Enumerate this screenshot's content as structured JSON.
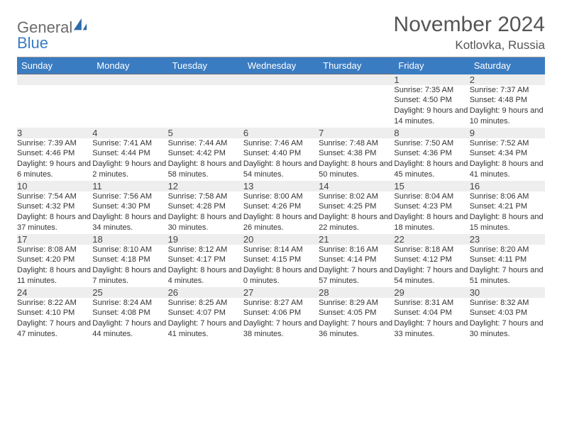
{
  "logo": {
    "word1": "General",
    "word2": "Blue"
  },
  "title": "November 2024",
  "location": "Kotlovka, Russia",
  "colors": {
    "header_bg": "#3a7cc2",
    "header_text": "#ffffff",
    "daynum_bg": "#eeeeee",
    "text": "#333333",
    "title_text": "#555555",
    "rule": "#6d6d6d"
  },
  "weekdays": [
    "Sunday",
    "Monday",
    "Tuesday",
    "Wednesday",
    "Thursday",
    "Friday",
    "Saturday"
  ],
  "weeks": [
    [
      null,
      null,
      null,
      null,
      null,
      {
        "n": "1",
        "sunrise": "7:35 AM",
        "sunset": "4:50 PM",
        "dl": "9 hours and 14 minutes."
      },
      {
        "n": "2",
        "sunrise": "7:37 AM",
        "sunset": "4:48 PM",
        "dl": "9 hours and 10 minutes."
      }
    ],
    [
      {
        "n": "3",
        "sunrise": "7:39 AM",
        "sunset": "4:46 PM",
        "dl": "9 hours and 6 minutes."
      },
      {
        "n": "4",
        "sunrise": "7:41 AM",
        "sunset": "4:44 PM",
        "dl": "9 hours and 2 minutes."
      },
      {
        "n": "5",
        "sunrise": "7:44 AM",
        "sunset": "4:42 PM",
        "dl": "8 hours and 58 minutes."
      },
      {
        "n": "6",
        "sunrise": "7:46 AM",
        "sunset": "4:40 PM",
        "dl": "8 hours and 54 minutes."
      },
      {
        "n": "7",
        "sunrise": "7:48 AM",
        "sunset": "4:38 PM",
        "dl": "8 hours and 50 minutes."
      },
      {
        "n": "8",
        "sunrise": "7:50 AM",
        "sunset": "4:36 PM",
        "dl": "8 hours and 45 minutes."
      },
      {
        "n": "9",
        "sunrise": "7:52 AM",
        "sunset": "4:34 PM",
        "dl": "8 hours and 41 minutes."
      }
    ],
    [
      {
        "n": "10",
        "sunrise": "7:54 AM",
        "sunset": "4:32 PM",
        "dl": "8 hours and 37 minutes."
      },
      {
        "n": "11",
        "sunrise": "7:56 AM",
        "sunset": "4:30 PM",
        "dl": "8 hours and 34 minutes."
      },
      {
        "n": "12",
        "sunrise": "7:58 AM",
        "sunset": "4:28 PM",
        "dl": "8 hours and 30 minutes."
      },
      {
        "n": "13",
        "sunrise": "8:00 AM",
        "sunset": "4:26 PM",
        "dl": "8 hours and 26 minutes."
      },
      {
        "n": "14",
        "sunrise": "8:02 AM",
        "sunset": "4:25 PM",
        "dl": "8 hours and 22 minutes."
      },
      {
        "n": "15",
        "sunrise": "8:04 AM",
        "sunset": "4:23 PM",
        "dl": "8 hours and 18 minutes."
      },
      {
        "n": "16",
        "sunrise": "8:06 AM",
        "sunset": "4:21 PM",
        "dl": "8 hours and 15 minutes."
      }
    ],
    [
      {
        "n": "17",
        "sunrise": "8:08 AM",
        "sunset": "4:20 PM",
        "dl": "8 hours and 11 minutes."
      },
      {
        "n": "18",
        "sunrise": "8:10 AM",
        "sunset": "4:18 PM",
        "dl": "8 hours and 7 minutes."
      },
      {
        "n": "19",
        "sunrise": "8:12 AM",
        "sunset": "4:17 PM",
        "dl": "8 hours and 4 minutes."
      },
      {
        "n": "20",
        "sunrise": "8:14 AM",
        "sunset": "4:15 PM",
        "dl": "8 hours and 0 minutes."
      },
      {
        "n": "21",
        "sunrise": "8:16 AM",
        "sunset": "4:14 PM",
        "dl": "7 hours and 57 minutes."
      },
      {
        "n": "22",
        "sunrise": "8:18 AM",
        "sunset": "4:12 PM",
        "dl": "7 hours and 54 minutes."
      },
      {
        "n": "23",
        "sunrise": "8:20 AM",
        "sunset": "4:11 PM",
        "dl": "7 hours and 51 minutes."
      }
    ],
    [
      {
        "n": "24",
        "sunrise": "8:22 AM",
        "sunset": "4:10 PM",
        "dl": "7 hours and 47 minutes."
      },
      {
        "n": "25",
        "sunrise": "8:24 AM",
        "sunset": "4:08 PM",
        "dl": "7 hours and 44 minutes."
      },
      {
        "n": "26",
        "sunrise": "8:25 AM",
        "sunset": "4:07 PM",
        "dl": "7 hours and 41 minutes."
      },
      {
        "n": "27",
        "sunrise": "8:27 AM",
        "sunset": "4:06 PM",
        "dl": "7 hours and 38 minutes."
      },
      {
        "n": "28",
        "sunrise": "8:29 AM",
        "sunset": "4:05 PM",
        "dl": "7 hours and 36 minutes."
      },
      {
        "n": "29",
        "sunrise": "8:31 AM",
        "sunset": "4:04 PM",
        "dl": "7 hours and 33 minutes."
      },
      {
        "n": "30",
        "sunrise": "8:32 AM",
        "sunset": "4:03 PM",
        "dl": "7 hours and 30 minutes."
      }
    ]
  ],
  "labels": {
    "sunrise_prefix": "Sunrise: ",
    "sunset_prefix": "Sunset: ",
    "daylight_prefix": "Daylight: "
  }
}
